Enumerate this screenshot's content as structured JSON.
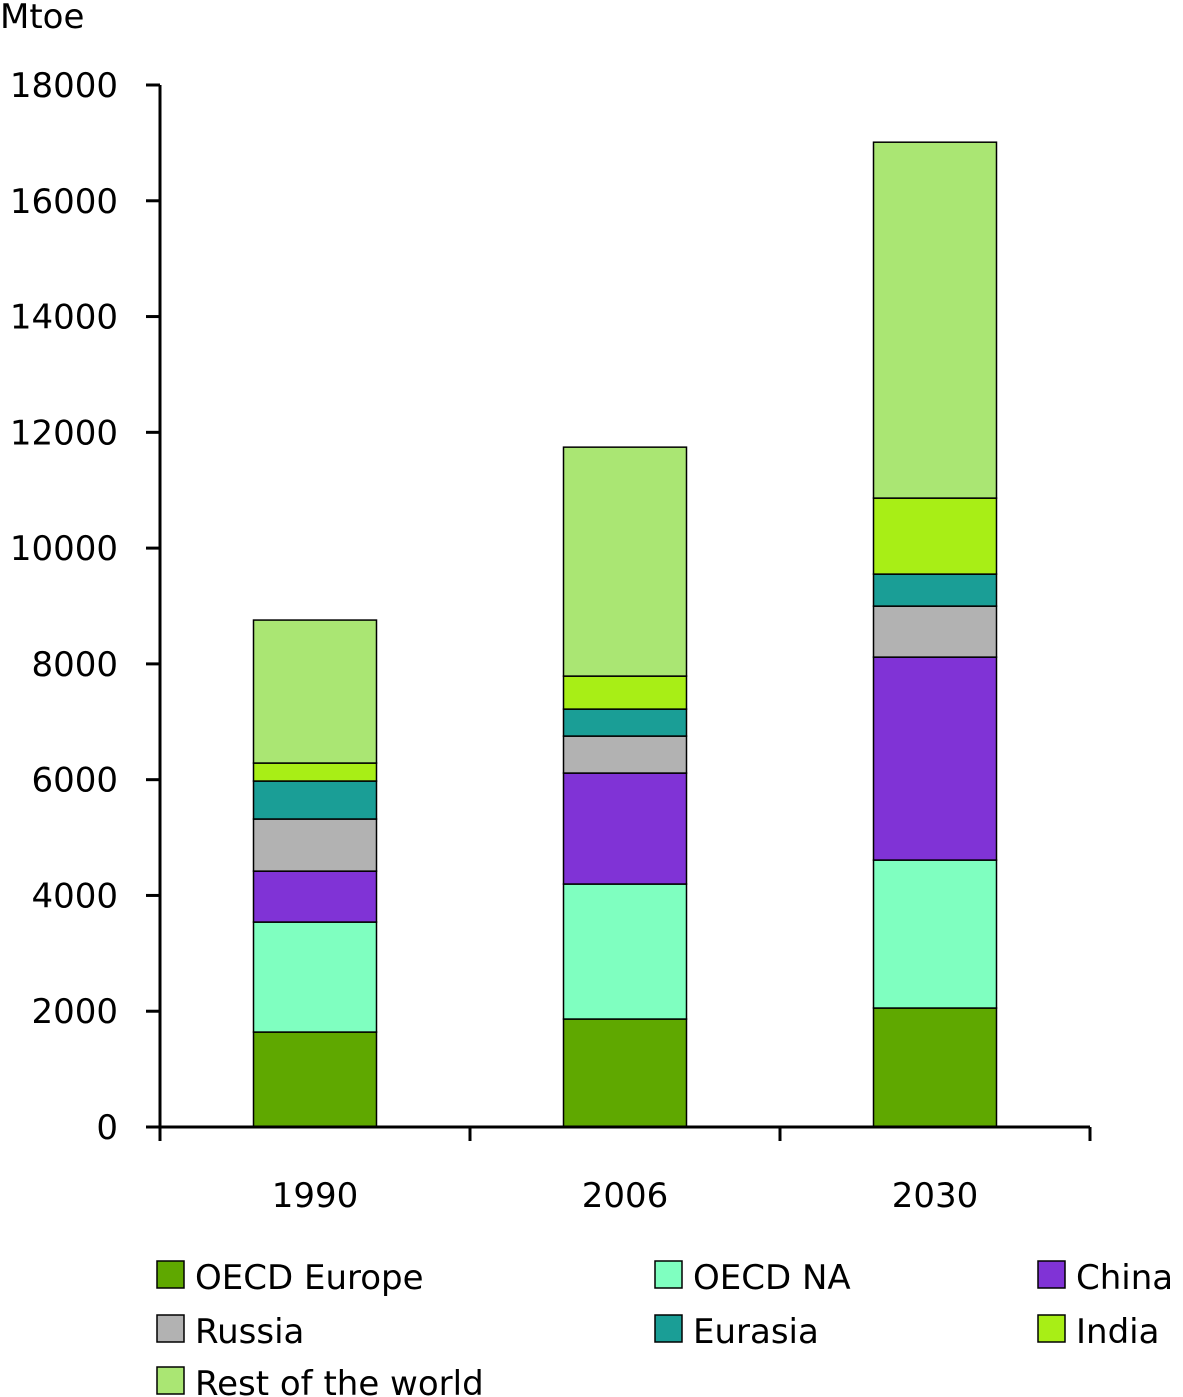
{
  "chart_data": {
    "type": "bar",
    "stacked": true,
    "title": "",
    "ylabel": "Mtoe",
    "xlabel": "",
    "ylim": [
      0,
      18000
    ],
    "yticks": [
      0,
      2000,
      4000,
      6000,
      8000,
      10000,
      12000,
      14000,
      16000,
      18000
    ],
    "categories": [
      "1990",
      "2006",
      "2030"
    ],
    "legend_position": "bottom",
    "grid": false,
    "series": [
      {
        "name": "OECD Europe",
        "color": "#5FA800",
        "values": [
          1640,
          1865,
          2055
        ]
      },
      {
        "name": "OECD NA",
        "color": "#7FFFC0",
        "values": [
          1900,
          2332,
          2556
        ]
      },
      {
        "name": "China",
        "color": "#8033D6",
        "values": [
          880,
          1917,
          3506
        ]
      },
      {
        "name": "Russia",
        "color": "#B2B2B2",
        "values": [
          900,
          639,
          881
        ]
      },
      {
        "name": "Eurasia",
        "color": "#1A9E96",
        "values": [
          656,
          466,
          553
        ]
      },
      {
        "name": "India",
        "color": "#A8EE16",
        "values": [
          311,
          570,
          1313
        ]
      },
      {
        "name": "Rest of the world",
        "color": "#AAE673",
        "values": [
          2470,
          3955,
          6148
        ]
      }
    ]
  }
}
